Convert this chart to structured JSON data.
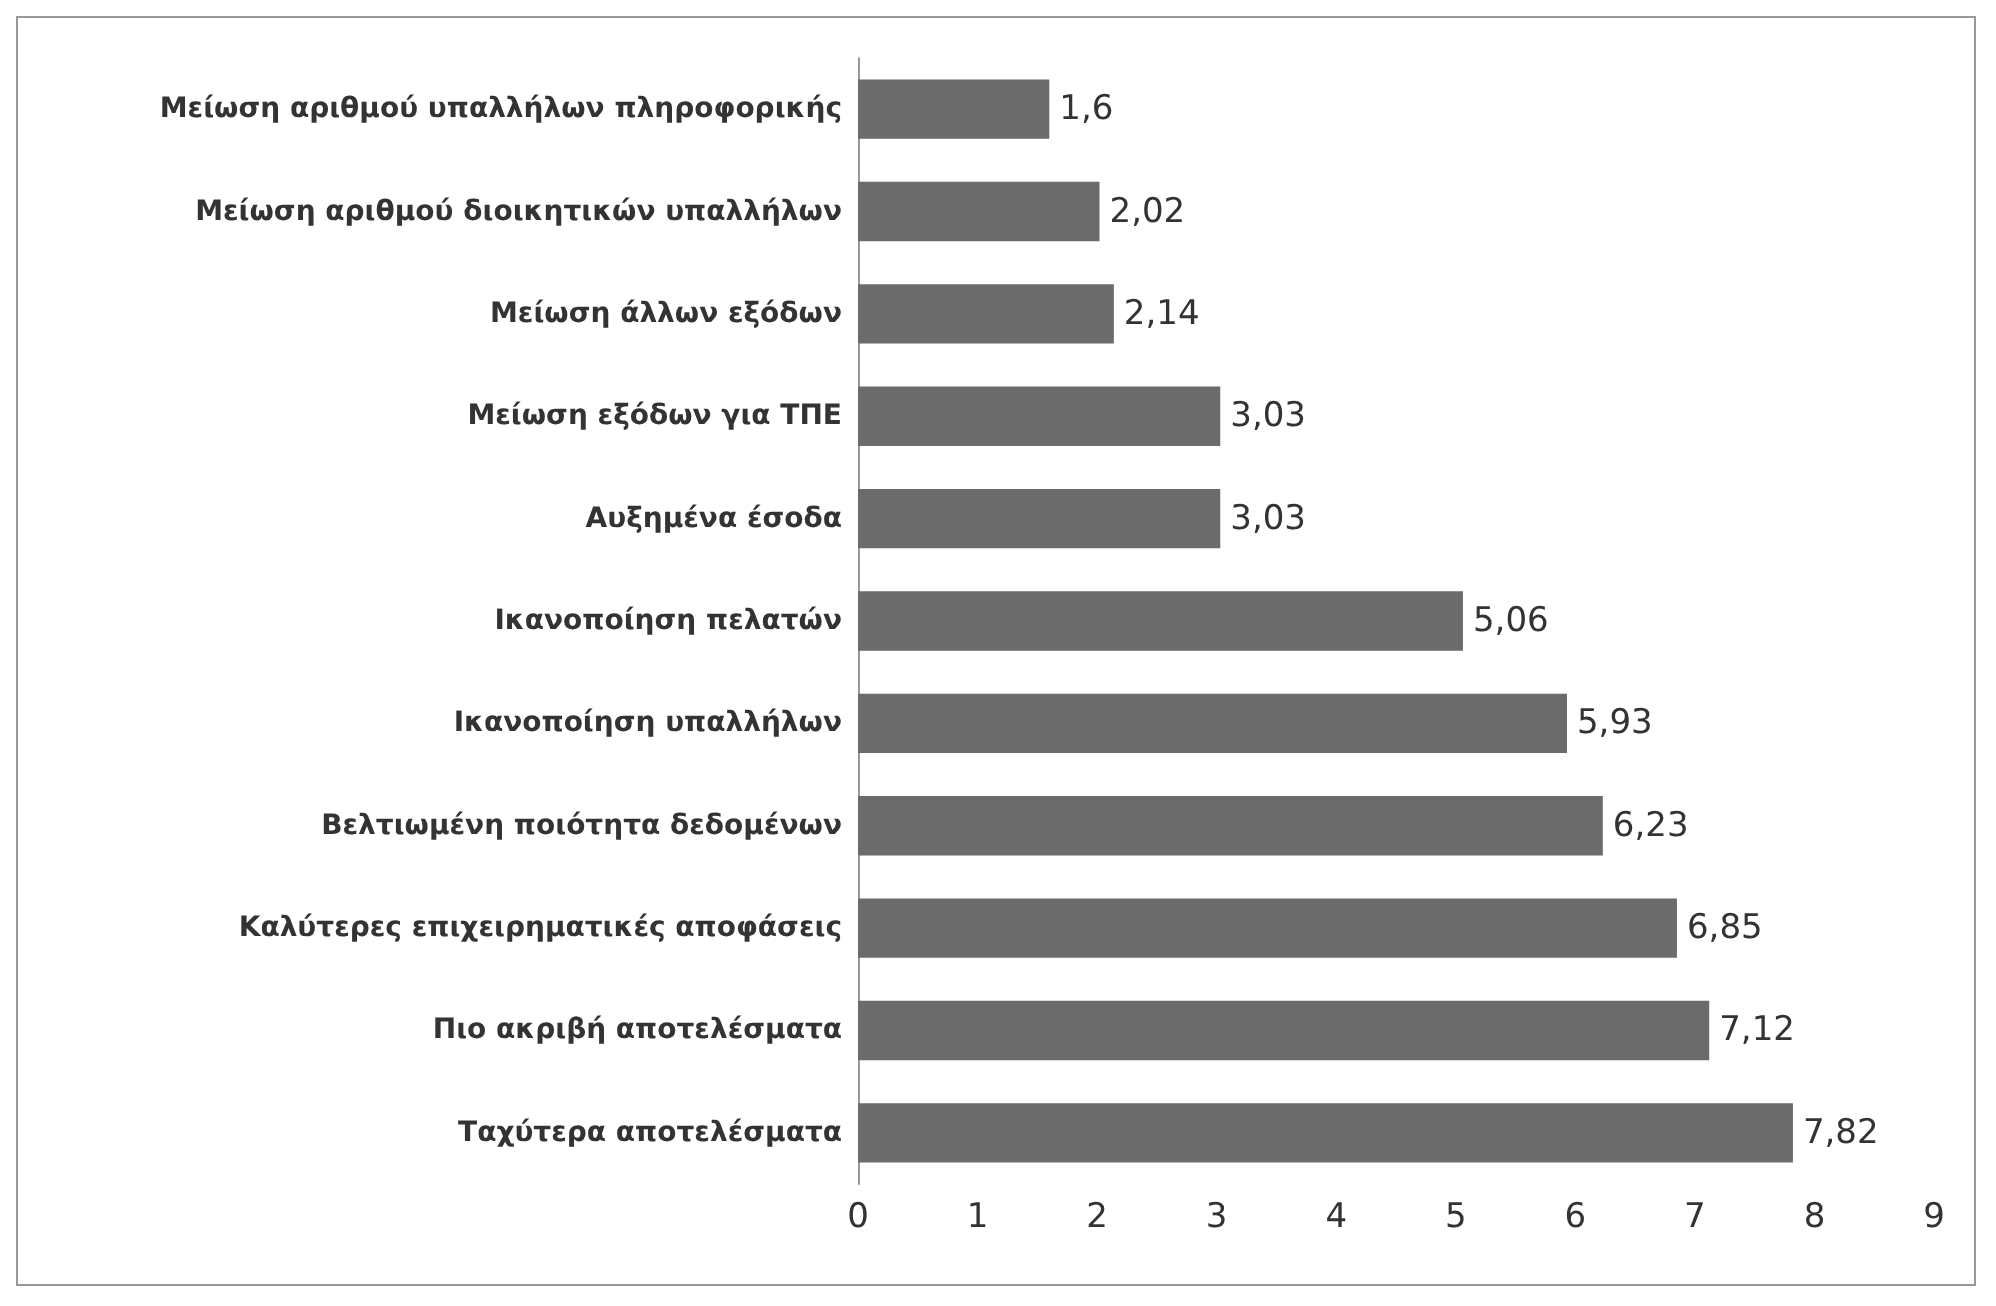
{
  "chart_data": {
    "type": "bar",
    "orientation": "horizontal",
    "categories": [
      "Μείωση αριθμού υπαλλήλων πληροφορικής",
      "Μείωση αριθμού διοικητικών υπαλλήλων",
      "Μείωση άλλων εξόδων",
      "Μείωση εξόδων για ΤΠΕ",
      "Αυξημένα έσοδα",
      "Ικανοποίηση πελατών",
      "Ικανοποίηση υπαλλήλων",
      "Βελτιωμένη ποιότητα δεδομένων",
      "Καλύτερες επιχειρηματικές αποφάσεις",
      "Πιο ακριβή αποτελέσματα",
      "Ταχύτερα αποτελέσματα"
    ],
    "values": [
      1.6,
      2.02,
      2.14,
      3.03,
      3.03,
      5.06,
      5.93,
      6.23,
      6.85,
      7.12,
      7.82
    ],
    "value_labels": [
      "1,6",
      "2,02",
      "2,14",
      "3,03",
      "3,03",
      "5,06",
      "5,93",
      "6,23",
      "6,85",
      "7,12",
      "7,82"
    ],
    "color": "#6b6b6b",
    "xlim": [
      0,
      9
    ],
    "xticks": [
      0,
      1,
      2,
      3,
      4,
      5,
      6,
      7,
      8,
      9
    ]
  }
}
